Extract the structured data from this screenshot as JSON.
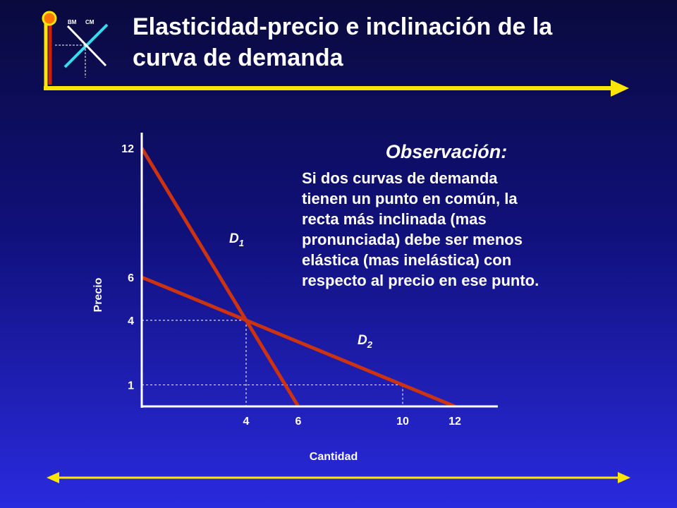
{
  "header": {
    "title_lines": [
      "Elasticidad-precio e inclinación de la",
      "curva de demanda"
    ],
    "logo_left": "BM",
    "logo_right": "CM"
  },
  "observation": {
    "title": "Observación:",
    "lines": [
      "Si dos curvas de demanda",
      "tienen un punto en común, la",
      "recta más inclinada (mas",
      "pronunciada) debe ser menos",
      "elástica (mas inelástica) con",
      "respecto al precio en ese punto."
    ]
  },
  "colors": {
    "accent_yellow": "#ffe600",
    "curve_red": "#cc3311",
    "logo_cyan": "#33ddee",
    "logo_orange": "#ff7700",
    "text_white": "#ffffff"
  },
  "chart_data": {
    "type": "line",
    "xlabel": "Cantidad",
    "ylabel": "Precio",
    "x_ticks": [
      4,
      6,
      10,
      12
    ],
    "y_ticks": [
      1,
      4,
      6,
      12
    ],
    "series": [
      {
        "name": "D",
        "subscript": "1",
        "points": [
          [
            0,
            12
          ],
          [
            6,
            0
          ]
        ]
      },
      {
        "name": "D",
        "subscript": "2",
        "points": [
          [
            0,
            6
          ],
          [
            12,
            0
          ]
        ]
      }
    ],
    "guides": [
      {
        "x": 4,
        "y": 4
      },
      {
        "x": 10,
        "y": 1
      }
    ],
    "grid": false
  }
}
